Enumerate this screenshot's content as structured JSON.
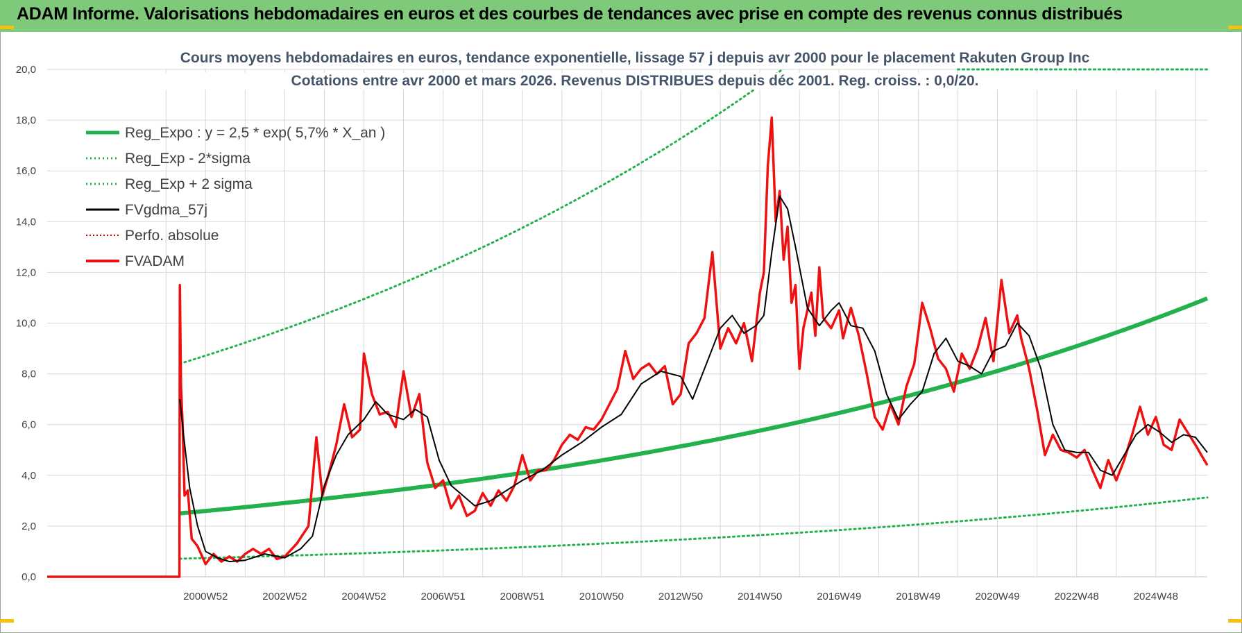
{
  "banner": {
    "title": "ADAM Informe. Valorisations hebdomadaires en euros et des courbes de tendances avec prise en compte des revenus connus distribués"
  },
  "colors": {
    "banner_bg": "#7ec97a",
    "reg_expo": "#22b14c",
    "sigma": "#22b14c",
    "fvgdma": "#000000",
    "fvadam": "#ee1111",
    "perfo": "#c00000",
    "title": "#44546a",
    "grid": "#d9d9d9",
    "corner_accent": "#f4c20d"
  },
  "chart_data": {
    "type": "line",
    "title_line1": "Cours moyens hebdomadaires en euros, tendance exponentielle, lissage 57 j depuis avr 2000 pour le placement Rakuten Group Inc",
    "title_line2": "Cotations entre avr 2000 et mars 2026.  Revenus DISTRIBUES depuis déc 2001. Reg. croiss. : 0,0/20.",
    "ylim": [
      0,
      20
    ],
    "xlim": [
      1996.0,
      2025.3
    ],
    "y_ticks": [
      "0,0",
      "2,0",
      "4,0",
      "6,0",
      "8,0",
      "10,0",
      "12,0",
      "14,0",
      "16,0",
      "18,0",
      "20,0"
    ],
    "x_ticks": [
      {
        "label": "2000W52",
        "x": 2000.0
      },
      {
        "label": "2002W52",
        "x": 2002.0
      },
      {
        "label": "2004W52",
        "x": 2004.0
      },
      {
        "label": "2006W51",
        "x": 2006.0
      },
      {
        "label": "2008W51",
        "x": 2008.0
      },
      {
        "label": "2010W50",
        "x": 2010.0
      },
      {
        "label": "2012W50",
        "x": 2012.0
      },
      {
        "label": "2014W50",
        "x": 2014.0
      },
      {
        "label": "2016W49",
        "x": 2016.0
      },
      {
        "label": "2018W49",
        "x": 2018.0
      },
      {
        "label": "2020W49",
        "x": 2020.0
      },
      {
        "label": "2022W48",
        "x": 2022.0
      },
      {
        "label": "2024W48",
        "x": 2024.0
      }
    ],
    "legend_position": "top-left",
    "regression": {
      "a": 2.5,
      "rate": 0.057,
      "x_start": 1999.35,
      "lower_factor": 0.285,
      "upper_factor": 3.36
    },
    "series": [
      {
        "name": "Reg_Expo : y = 2,5 * exp( 5,7% *  X_an )",
        "key": "reg_expo",
        "style": "thick-solid"
      },
      {
        "name": "Reg_Exp - 2*sigma",
        "key": "reg_lower",
        "style": "dotted"
      },
      {
        "name": "Reg_Exp + 2 sigma",
        "key": "reg_upper",
        "style": "dotted"
      },
      {
        "name": "FVgdma_57j",
        "key": "fvgdma",
        "style": "solid",
        "x": [
          1999.35,
          1999.45,
          1999.6,
          1999.8,
          2000.0,
          2000.3,
          2000.6,
          2001.0,
          2001.5,
          2002.0,
          2002.4,
          2002.7,
          2003.0,
          2003.3,
          2003.6,
          2004.0,
          2004.3,
          2004.6,
          2005.0,
          2005.3,
          2005.6,
          2005.9,
          2006.2,
          2006.5,
          2006.8,
          2007.2,
          2007.6,
          2008.0,
          2008.5,
          2009.0,
          2009.5,
          2010.0,
          2010.5,
          2011.0,
          2011.5,
          2012.0,
          2012.3,
          2012.6,
          2013.0,
          2013.3,
          2013.6,
          2013.9,
          2014.1,
          2014.3,
          2014.5,
          2014.7,
          2014.9,
          2015.2,
          2015.5,
          2015.8,
          2016.0,
          2016.3,
          2016.6,
          2016.9,
          2017.2,
          2017.5,
          2017.8,
          2018.1,
          2018.4,
          2018.7,
          2019.0,
          2019.3,
          2019.6,
          2019.9,
          2020.2,
          2020.5,
          2020.8,
          2021.1,
          2021.4,
          2021.7,
          2022.0,
          2022.3,
          2022.6,
          2022.9,
          2023.2,
          2023.5,
          2023.8,
          2024.1,
          2024.4,
          2024.7,
          2025.0,
          2025.3
        ],
        "values": [
          7.0,
          5.5,
          3.5,
          2.0,
          1.0,
          0.75,
          0.6,
          0.65,
          0.9,
          0.75,
          1.1,
          1.6,
          3.6,
          4.8,
          5.6,
          6.2,
          6.9,
          6.4,
          6.2,
          6.6,
          6.3,
          4.6,
          3.6,
          3.2,
          2.8,
          3.0,
          3.4,
          3.8,
          4.2,
          4.8,
          5.3,
          5.9,
          6.4,
          7.6,
          8.1,
          7.9,
          7.0,
          8.2,
          9.8,
          10.3,
          9.6,
          9.9,
          10.3,
          12.8,
          15.0,
          14.5,
          13.0,
          10.6,
          9.9,
          10.5,
          10.8,
          9.9,
          9.8,
          8.9,
          7.2,
          6.2,
          6.8,
          7.3,
          8.8,
          9.4,
          8.5,
          8.3,
          8.0,
          8.9,
          9.1,
          10.0,
          9.5,
          8.2,
          6.0,
          5.0,
          4.9,
          4.9,
          4.2,
          4.0,
          4.8,
          5.6,
          6.0,
          5.7,
          5.3,
          5.6,
          5.5,
          4.9
        ]
      },
      {
        "name": "Perfo. absolue",
        "key": "perfo",
        "style": "dotted"
      },
      {
        "name": "FVADAM",
        "key": "fvadam",
        "style": "solid",
        "x": [
          1996.0,
          1999.34,
          1999.35,
          1999.38,
          1999.42,
          1999.47,
          1999.55,
          1999.65,
          1999.8,
          2000.0,
          2000.2,
          2000.4,
          2000.6,
          2000.8,
          2001.0,
          2001.2,
          2001.4,
          2001.6,
          2001.8,
          2002.0,
          2002.3,
          2002.6,
          2002.8,
          2002.95,
          2003.1,
          2003.3,
          2003.5,
          2003.7,
          2003.9,
          2004.0,
          2004.2,
          2004.4,
          2004.6,
          2004.8,
          2005.0,
          2005.2,
          2005.4,
          2005.6,
          2005.8,
          2006.0,
          2006.2,
          2006.4,
          2006.6,
          2006.8,
          2007.0,
          2007.2,
          2007.4,
          2007.6,
          2007.8,
          2008.0,
          2008.2,
          2008.4,
          2008.6,
          2008.8,
          2009.0,
          2009.2,
          2009.4,
          2009.6,
          2009.8,
          2010.0,
          2010.2,
          2010.4,
          2010.6,
          2010.8,
          2011.0,
          2011.2,
          2011.4,
          2011.6,
          2011.8,
          2012.0,
          2012.2,
          2012.4,
          2012.6,
          2012.8,
          2013.0,
          2013.2,
          2013.4,
          2013.6,
          2013.8,
          2014.0,
          2014.1,
          2014.2,
          2014.3,
          2014.4,
          2014.5,
          2014.6,
          2014.7,
          2014.8,
          2014.9,
          2015.0,
          2015.1,
          2015.2,
          2015.3,
          2015.4,
          2015.5,
          2015.6,
          2015.8,
          2016.0,
          2016.1,
          2016.3,
          2016.5,
          2016.7,
          2016.9,
          2017.1,
          2017.3,
          2017.5,
          2017.7,
          2017.9,
          2018.1,
          2018.3,
          2018.5,
          2018.7,
          2018.9,
          2019.1,
          2019.3,
          2019.5,
          2019.7,
          2019.9,
          2020.1,
          2020.3,
          2020.5,
          2020.6,
          2020.8,
          2021.0,
          2021.2,
          2021.4,
          2021.6,
          2021.8,
          2022.0,
          2022.2,
          2022.4,
          2022.6,
          2022.8,
          2023.0,
          2023.2,
          2023.4,
          2023.6,
          2023.8,
          2024.0,
          2024.2,
          2024.4,
          2024.6,
          2024.8,
          2025.0,
          2025.15,
          2025.3
        ],
        "values": [
          0.0,
          0.0,
          11.5,
          7.5,
          6.0,
          3.2,
          3.4,
          1.5,
          1.2,
          0.5,
          0.9,
          0.6,
          0.8,
          0.6,
          0.9,
          1.1,
          0.9,
          1.1,
          0.7,
          0.8,
          1.3,
          2.0,
          5.5,
          3.2,
          4.0,
          5.2,
          6.8,
          5.5,
          5.8,
          8.8,
          7.2,
          6.4,
          6.5,
          5.9,
          8.1,
          6.3,
          7.2,
          4.5,
          3.5,
          3.8,
          2.7,
          3.2,
          2.4,
          2.6,
          3.3,
          2.8,
          3.4,
          3.0,
          3.6,
          4.8,
          3.8,
          4.2,
          4.2,
          4.6,
          5.2,
          5.6,
          5.4,
          5.9,
          5.8,
          6.2,
          6.8,
          7.4,
          8.9,
          7.8,
          8.2,
          8.4,
          8.0,
          8.3,
          6.8,
          7.2,
          9.2,
          9.6,
          10.2,
          12.8,
          9.0,
          9.8,
          9.2,
          10.0,
          8.5,
          11.2,
          12.0,
          16.2,
          18.1,
          14.0,
          15.2,
          12.5,
          13.8,
          10.8,
          11.5,
          8.2,
          9.8,
          10.5,
          11.2,
          9.5,
          12.2,
          10.2,
          9.8,
          10.5,
          9.4,
          10.6,
          9.5,
          8.0,
          6.3,
          5.8,
          6.8,
          6.0,
          7.5,
          8.4,
          10.8,
          9.8,
          8.6,
          8.2,
          7.3,
          8.8,
          8.2,
          9.0,
          10.2,
          8.5,
          11.7,
          9.6,
          10.3,
          9.4,
          8.2,
          6.6,
          4.8,
          5.6,
          5.0,
          4.9,
          4.7,
          5.0,
          4.2,
          3.5,
          4.6,
          3.8,
          4.6,
          5.6,
          6.7,
          5.6,
          6.3,
          5.2,
          5.0,
          6.2,
          5.7,
          5.2,
          4.8,
          4.4
        ]
      }
    ]
  }
}
